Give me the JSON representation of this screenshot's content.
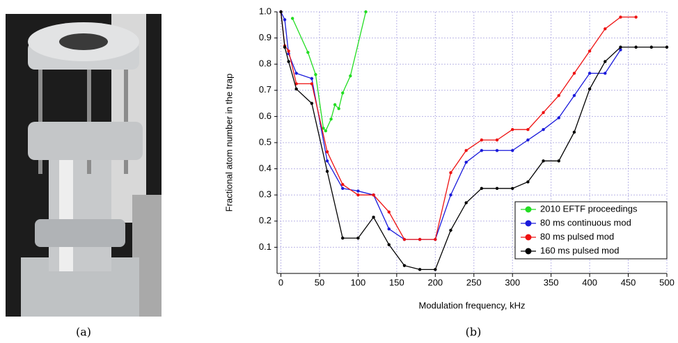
{
  "captions": [
    "(a)",
    "(b)"
  ],
  "chart_data": {
    "type": "line",
    "xlabel": "Modulation frequency, kHz",
    "ylabel": "Fractional atom number in the trap",
    "xlim": [
      -5,
      500
    ],
    "ylim": [
      0,
      1
    ],
    "xticks": [
      0,
      50,
      100,
      150,
      200,
      250,
      300,
      350,
      400,
      450,
      500
    ],
    "yticks": [
      0.1,
      0.2,
      0.3,
      0.4,
      0.5,
      0.6,
      0.7,
      0.8,
      0.9,
      {
        "value": 1,
        "label": "1.0"
      }
    ],
    "grid": true,
    "legend": "lower right",
    "series": [
      {
        "name": "2010 EFTF proceedings",
        "color": "#22dd22",
        "x": [
          15,
          35,
          45,
          55,
          58,
          65,
          70,
          75,
          80,
          90,
          110
        ],
        "values": [
          0.975,
          0.845,
          0.76,
          0.555,
          0.545,
          0.59,
          0.645,
          0.63,
          0.69,
          0.755,
          1.0
        ]
      },
      {
        "name": "80 ms continuous mod",
        "color": "#1a1adb",
        "x": [
          0,
          5,
          10,
          20,
          40,
          60,
          80,
          100,
          120,
          140,
          160,
          180,
          200,
          220,
          240,
          260,
          280,
          300,
          320,
          340,
          360,
          380,
          400,
          420,
          440
        ],
        "values": [
          1.0,
          0.97,
          0.84,
          0.765,
          0.745,
          0.43,
          0.325,
          0.315,
          0.3,
          0.17,
          0.13,
          0.13,
          0.13,
          0.3,
          0.425,
          0.47,
          0.47,
          0.47,
          0.51,
          0.55,
          0.595,
          0.68,
          0.765,
          0.765,
          0.855
        ]
      },
      {
        "name": "80 ms pulsed mod",
        "color": "#ee1111",
        "x": [
          0,
          5,
          10,
          20,
          40,
          60,
          80,
          100,
          120,
          140,
          160,
          180,
          200,
          220,
          240,
          260,
          280,
          300,
          320,
          340,
          360,
          380,
          400,
          420,
          440,
          460
        ],
        "values": [
          1.0,
          0.87,
          0.85,
          0.725,
          0.725,
          0.465,
          0.34,
          0.3,
          0.3,
          0.235,
          0.13,
          0.13,
          0.13,
          0.385,
          0.47,
          0.51,
          0.51,
          0.55,
          0.55,
          0.615,
          0.68,
          0.765,
          0.85,
          0.935,
          0.98,
          0.98
        ]
      },
      {
        "name": "160 ms pulsed mod",
        "color": "#000000",
        "x": [
          0,
          5,
          10,
          20,
          40,
          60,
          80,
          100,
          120,
          140,
          160,
          180,
          200,
          220,
          240,
          260,
          280,
          300,
          320,
          340,
          360,
          380,
          400,
          420,
          440,
          460,
          480,
          500
        ],
        "values": [
          1.0,
          0.865,
          0.81,
          0.705,
          0.65,
          0.39,
          0.135,
          0.135,
          0.215,
          0.11,
          0.03,
          0.015,
          0.015,
          0.165,
          0.27,
          0.325,
          0.325,
          0.325,
          0.35,
          0.43,
          0.43,
          0.54,
          0.705,
          0.81,
          0.865,
          0.865,
          0.865,
          0.865
        ]
      }
    ]
  }
}
